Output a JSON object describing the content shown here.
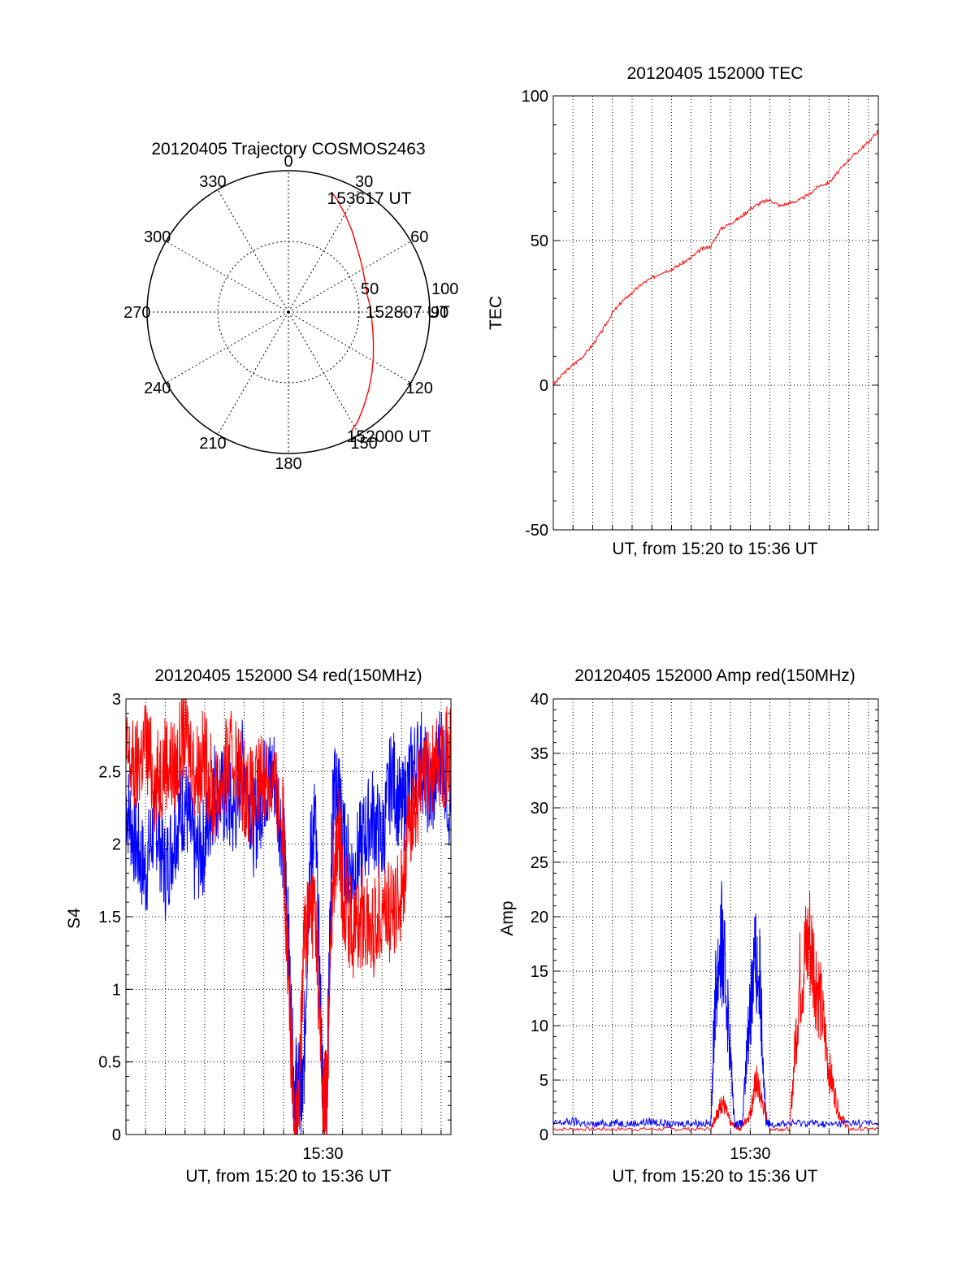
{
  "colors": {
    "red": "#ff0000",
    "blue": "#0000ff",
    "axis": "#000000",
    "grid": "#000000"
  },
  "chart_data": [
    {
      "id": "trajectory",
      "type": "polar",
      "title": "20120405 Trajectory COSMOS2463",
      "angle_labels": [
        "0",
        "30",
        "60",
        "90",
        "120",
        "150",
        "180",
        "210",
        "240",
        "270",
        "300",
        "330"
      ],
      "angles_deg": [
        0,
        30,
        60,
        90,
        120,
        150,
        180,
        210,
        240,
        270,
        300,
        330
      ],
      "radial_ticks": [
        50,
        100
      ],
      "radial_labels": [
        "50",
        "100"
      ],
      "rlim": [
        0,
        100
      ],
      "grid": true,
      "track": {
        "azimuth_deg": [
          20,
          24,
          30,
          38,
          46,
          54,
          62,
          70,
          78,
          86,
          94,
          102,
          110,
          118,
          126,
          134,
          142,
          148,
          152
        ],
        "distance": [
          90,
          86,
          80,
          73,
          67,
          63,
          60,
          58,
          57,
          58,
          59,
          61,
          64,
          68,
          73,
          79,
          86,
          92,
          95
        ]
      },
      "annotations": [
        {
          "text": "153617 UT",
          "azimuth_deg": 20,
          "distance": 90
        },
        {
          "text": "152807 UT",
          "azimuth_deg": 86,
          "distance": 58
        },
        {
          "text": "152000 UT",
          "azimuth_deg": 152,
          "distance": 95
        }
      ]
    },
    {
      "id": "tec",
      "type": "line",
      "title": "20120405 152000 TEC",
      "xlabel": "UT, from 15:20 to 15:36 UT",
      "ylabel": "TEC",
      "xlim": [
        0,
        16.5
      ],
      "ylim": [
        -50,
        100
      ],
      "yticks": [
        -50,
        0,
        50,
        100
      ],
      "ytick_labels": [
        "-50",
        "0",
        "50",
        "100"
      ],
      "grid": true,
      "series": [
        {
          "x": [
            0,
            0.5,
            1,
            1.5,
            2,
            2.5,
            3,
            3.5,
            4,
            4.5,
            5,
            5.5,
            6,
            6.5,
            7,
            7.5,
            8,
            8.5,
            9,
            9.5,
            10,
            10.5,
            11,
            11.5,
            12,
            12.5,
            13,
            13.5,
            14,
            14.5,
            15,
            15.5,
            16,
            16.5
          ],
          "y": [
            0,
            4,
            7,
            10,
            14,
            19,
            25,
            29,
            32,
            35,
            37,
            39,
            40,
            42,
            44,
            47,
            48,
            54,
            56,
            58,
            61,
            63,
            64,
            62,
            63,
            64,
            66,
            69,
            70,
            74,
            78,
            81,
            84,
            88
          ]
        }
      ]
    },
    {
      "id": "s4",
      "type": "line",
      "title": "20120405 152000 S4 red(150MHz)",
      "xlabel": "UT, from 15:20 to 15:36 UT",
      "ylabel": "S4",
      "xlim": [
        0,
        16.5
      ],
      "ylim": [
        0,
        3
      ],
      "yticks": [
        0,
        0.5,
        1,
        1.5,
        2,
        2.5,
        3
      ],
      "ytick_labels": [
        "0",
        "0.5",
        "1",
        "1.5",
        "2",
        "2.5",
        "3"
      ],
      "xticks": [
        10
      ],
      "xtick_labels": [
        "15:30"
      ],
      "grid": true,
      "series": [
        {
          "color": "blue",
          "x": [
            0,
            0.5,
            1,
            1.5,
            2,
            2.5,
            3,
            3.5,
            4,
            4.5,
            5,
            5.5,
            6,
            6.5,
            7,
            7.5,
            8,
            8.2,
            8.5,
            8.8,
            9,
            9.3,
            9.6,
            10,
            10.2,
            10.5,
            10.8,
            11,
            11.5,
            12,
            12.5,
            13,
            13.5,
            14,
            14.5,
            15,
            15.5,
            16,
            16.5
          ],
          "y": [
            2.3,
            2.0,
            1.8,
            2.2,
            1.8,
            2.1,
            2.3,
            1.9,
            2.0,
            2.4,
            2.3,
            2.2,
            2.6,
            2.1,
            2.4,
            2.5,
            2.0,
            1.5,
            0.4,
            0.3,
            0.3,
            1.8,
            2.2,
            0.3,
            0.3,
            2.3,
            2.4,
            2.0,
            1.8,
            2.0,
            2.2,
            2.0,
            2.5,
            2.2,
            2.5,
            2.6,
            2.3,
            2.7,
            2.2
          ]
        },
        {
          "color": "red",
          "x": [
            0,
            0.5,
            1,
            1.5,
            2,
            2.5,
            3,
            3.5,
            4,
            4.5,
            5,
            5.5,
            6,
            6.5,
            7,
            7.5,
            8,
            8.2,
            8.5,
            8.8,
            9,
            9.3,
            9.6,
            10,
            10.2,
            10.5,
            10.8,
            11,
            11.5,
            12,
            12.5,
            13,
            13.5,
            14,
            14.5,
            15,
            15.5,
            16,
            16.5
          ],
          "y": [
            2.6,
            2.5,
            2.7,
            2.4,
            2.6,
            2.5,
            2.8,
            2.5,
            2.6,
            2.3,
            2.5,
            2.6,
            2.4,
            2.3,
            2.5,
            2.4,
            2.1,
            1.2,
            0.2,
            0.2,
            1.3,
            1.5,
            1.6,
            0.2,
            0.3,
            1.8,
            2.1,
            1.7,
            1.4,
            1.5,
            1.4,
            1.6,
            1.5,
            1.7,
            2.2,
            2.4,
            2.5,
            2.6,
            2.6
          ]
        }
      ]
    },
    {
      "id": "amp",
      "type": "line",
      "title": "20120405 152000 Amp red(150MHz)",
      "xlabel": "UT, from 15:20 to 15:36 UT",
      "ylabel": "Amp",
      "xlim": [
        0,
        16.5
      ],
      "ylim": [
        0,
        40
      ],
      "yticks": [
        0,
        5,
        10,
        15,
        20,
        25,
        30,
        35,
        40
      ],
      "ytick_labels": [
        "0",
        "5",
        "10",
        "15",
        "20",
        "25",
        "30",
        "35",
        "40"
      ],
      "xticks": [
        10
      ],
      "xtick_labels": [
        "15:30"
      ],
      "grid": true,
      "series": [
        {
          "color": "red",
          "x": [
            0,
            2,
            4,
            6,
            8,
            8.3,
            8.6,
            9,
            9.5,
            10,
            10.3,
            10.6,
            11,
            12,
            12.5,
            13,
            13.5,
            14,
            14.5,
            15,
            16.5
          ],
          "y": [
            0.5,
            0.5,
            0.5,
            0.5,
            0.5,
            2,
            3,
            1,
            0.5,
            2,
            5,
            3,
            0.5,
            0.5,
            14,
            18,
            13,
            6,
            2,
            0.5,
            0.5
          ]
        },
        {
          "color": "blue",
          "x": [
            0,
            1,
            2,
            3,
            4,
            5,
            6,
            7,
            8,
            8.2,
            8.5,
            8.8,
            9.2,
            9.6,
            10,
            10.2,
            10.5,
            10.8,
            11,
            12,
            13,
            14,
            15,
            16.5
          ],
          "y": [
            1,
            1.2,
            0.9,
            1.1,
            1,
            1.2,
            0.9,
            1.1,
            1,
            12,
            18,
            13,
            1,
            1,
            12,
            16,
            14,
            1,
            1,
            1,
            1.1,
            0.9,
            1.1,
            1
          ]
        }
      ]
    }
  ]
}
